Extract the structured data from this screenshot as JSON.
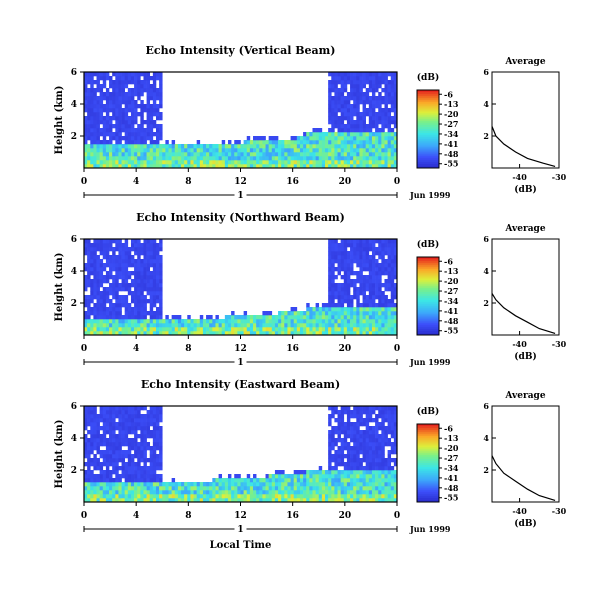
{
  "chart_data": {
    "type": "heatmap",
    "xlabel": "Local Time",
    "date_label": "Jun 1999",
    "x_ticks": [
      "0",
      "4",
      "8",
      "12",
      "16",
      "20",
      "0"
    ],
    "x_range": [
      0,
      24
    ],
    "day_marker": "1",
    "colorbar": {
      "unit": "(dB)",
      "ticks": [
        "-6",
        "-13",
        "-20",
        "-27",
        "-34",
        "-41",
        "-48",
        "-55"
      ],
      "range": [
        -58,
        -3
      ]
    },
    "panels": [
      {
        "title": "Echo Intensity (Vertical Beam)",
        "ylabel": "Height (km)",
        "y_ticks": [
          "6",
          "4",
          "2"
        ],
        "ylim": [
          0,
          6
        ],
        "avg": {
          "title": "Average",
          "xlabel": "(dB)",
          "x_ticks": [
            "-40",
            "-30"
          ],
          "xlim": [
            -47,
            -30
          ],
          "y_ticks": [
            "6",
            "4",
            "2"
          ],
          "ylim": [
            0,
            6
          ],
          "profile": [
            [
              0.1,
              -31
            ],
            [
              0.3,
              -34
            ],
            [
              0.6,
              -38
            ],
            [
              1.0,
              -41
            ],
            [
              1.5,
              -44
            ],
            [
              2.0,
              -46
            ],
            [
              2.6,
              -47
            ]
          ]
        }
      },
      {
        "title": "Echo Intensity (Northward Beam)",
        "ylabel": "Height (km)",
        "y_ticks": [
          "6",
          "4",
          "2"
        ],
        "ylim": [
          0,
          6
        ],
        "avg": {
          "title": "Average",
          "xlabel": "(dB)",
          "x_ticks": [
            "-40",
            "-30"
          ],
          "xlim": [
            -47,
            -30
          ],
          "y_ticks": [
            "6",
            "4",
            "2"
          ],
          "ylim": [
            0,
            6
          ],
          "profile": [
            [
              0.1,
              -31
            ],
            [
              0.4,
              -35
            ],
            [
              0.8,
              -38
            ],
            [
              1.2,
              -41
            ],
            [
              1.7,
              -44
            ],
            [
              2.2,
              -46
            ],
            [
              2.6,
              -47
            ]
          ]
        }
      },
      {
        "title": "Echo Intensity (Eastward Beam)",
        "ylabel": "Height (km)",
        "y_ticks": [
          "6",
          "4",
          "2"
        ],
        "ylim": [
          0,
          6
        ],
        "avg": {
          "title": "Average",
          "xlabel": "(dB)",
          "x_ticks": [
            "-40",
            "-30"
          ],
          "xlim": [
            -47,
            -30
          ],
          "y_ticks": [
            "6",
            "4",
            "2"
          ],
          "ylim": [
            0,
            6
          ],
          "profile": [
            [
              0.1,
              -31
            ],
            [
              0.4,
              -35
            ],
            [
              0.8,
              -38
            ],
            [
              1.3,
              -41
            ],
            [
              1.8,
              -44
            ],
            [
              2.4,
              -46
            ],
            [
              2.9,
              -47
            ]
          ]
        }
      }
    ]
  }
}
